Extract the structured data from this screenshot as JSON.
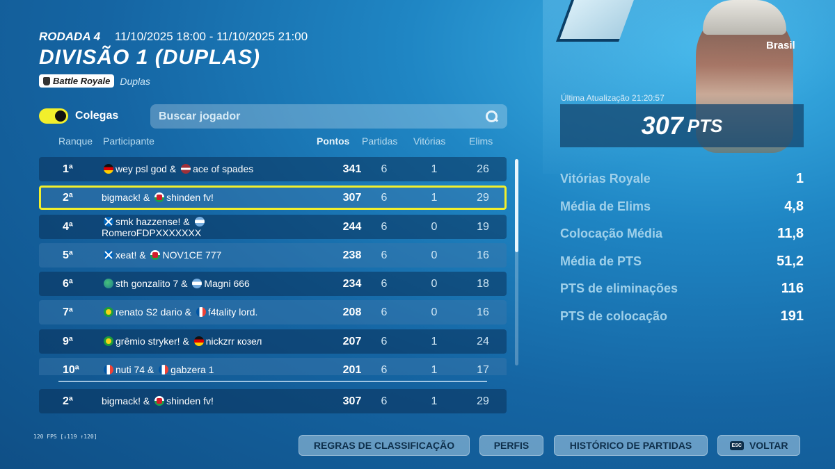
{
  "header": {
    "round_label": "RODADA 4",
    "round_time": "11/10/2025 18:00 - 11/10/2025 21:00",
    "title": "DIVISÃO 1 (DUPLAS)",
    "mode_badge": "Battle Royale",
    "mode_sub": "Duplas"
  },
  "filter": {
    "toggle_label": "Colegas",
    "toggle_on": true,
    "search_placeholder": "Buscar jogador"
  },
  "table": {
    "columns": {
      "rank": "Ranque",
      "participant": "Participante",
      "points": "Pontos",
      "matches": "Partidas",
      "wins": "Vitórias",
      "elims": "Elims"
    },
    "rows": [
      {
        "rank": "1ª",
        "p1": "wey psl god",
        "f1": "de",
        "p2": "ace of spades",
        "f2": "lv",
        "points": "341",
        "matches": "6",
        "wins": "1",
        "elims": "26"
      },
      {
        "rank": "2ª",
        "p1": "bigmack!",
        "f1": "",
        "p2": "shinden fv!",
        "f2": "wa",
        "points": "307",
        "matches": "6",
        "wins": "1",
        "elims": "29"
      },
      {
        "rank": "4ª",
        "p1": "smk hazzense!",
        "f1": "sc",
        "p2": "RomeroFDPXXXXXXX",
        "f2": "ar",
        "points": "244",
        "matches": "6",
        "wins": "0",
        "elims": "19"
      },
      {
        "rank": "5ª",
        "p1": "xeat!",
        "f1": "sc",
        "p2": "NOV1CE 777",
        "f2": "wa",
        "points": "238",
        "matches": "6",
        "wins": "0",
        "elims": "16"
      },
      {
        "rank": "6ª",
        "p1": "sth gonzalito 7",
        "f1": "world",
        "p2": "Magni 666",
        "f2": "ar",
        "points": "234",
        "matches": "6",
        "wins": "0",
        "elims": "18"
      },
      {
        "rank": "7ª",
        "p1": "renato S2 dario",
        "f1": "br",
        "p2": "f4tality lord.",
        "f2": "fr",
        "points": "208",
        "matches": "6",
        "wins": "0",
        "elims": "16"
      },
      {
        "rank": "9ª",
        "p1": "grêmio stryker!",
        "f1": "br",
        "p2": "nickzrr козел",
        "f2": "de",
        "points": "207",
        "matches": "6",
        "wins": "1",
        "elims": "24"
      },
      {
        "rank": "10ª",
        "p1": "nuti 74",
        "f1": "fr",
        "p2": "gabzera 1",
        "f2": "fr",
        "points": "201",
        "matches": "6",
        "wins": "1",
        "elims": "17"
      }
    ],
    "pinned": {
      "rank": "2ª",
      "p1": "bigmack!",
      "p2": "shinden fv!",
      "points": "307",
      "matches": "6",
      "wins": "1",
      "elims": "29"
    },
    "scroll_fraction": 0.45
  },
  "profile": {
    "country": "Brasil",
    "last_update": "Última Atualização 21:20:57",
    "points": "307",
    "points_unit": "PTS"
  },
  "stats": [
    {
      "label": "Vitórias Royale",
      "value": "1"
    },
    {
      "label": "Média de Elims",
      "value": "4,8"
    },
    {
      "label": "Colocação Média",
      "value": "11,8"
    },
    {
      "label": "Média de PTS",
      "value": "51,2"
    },
    {
      "label": "PTS de eliminações",
      "value": "116"
    },
    {
      "label": "PTS de colocação",
      "value": "191"
    }
  ],
  "footer": {
    "fps": "120 FPS [↓119 ↑120]",
    "buttons": {
      "rules": "REGRAS DE CLASSIFICAÇÃO",
      "profiles": "PERFIS",
      "history": "HISTÓRICO DE PARTIDAS",
      "back": "VOLTAR",
      "esc": "ESC"
    }
  },
  "colors": {
    "accent": "#f2ef2c",
    "background": "#1f86c4"
  }
}
